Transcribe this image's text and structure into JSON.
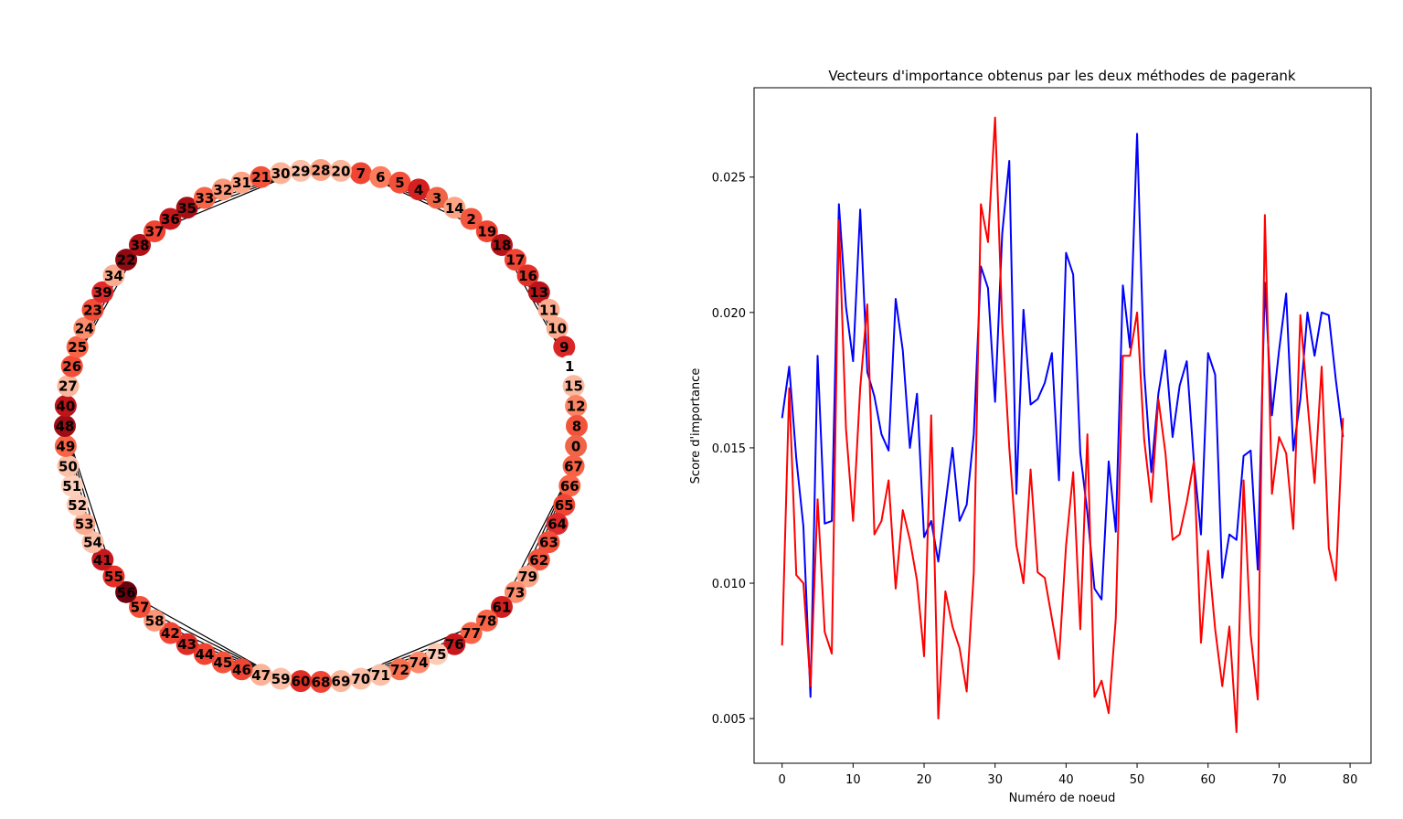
{
  "chart_data": [
    {
      "type": "network",
      "layout": "circular",
      "order": [
        7,
        6,
        5,
        4,
        3,
        14,
        2,
        19,
        18,
        17,
        16,
        13,
        11,
        10,
        9,
        1,
        15,
        12,
        8,
        0,
        67,
        66,
        65,
        64,
        63,
        62,
        79,
        73,
        61,
        78,
        77,
        76,
        75,
        74,
        72,
        71,
        70,
        69,
        68,
        60,
        59,
        47,
        46,
        45,
        44,
        43,
        42,
        58,
        57,
        56,
        55,
        41,
        54,
        53,
        52,
        51,
        50,
        49,
        48,
        40,
        27,
        26,
        25,
        24,
        23,
        39,
        34,
        22,
        38,
        37,
        36,
        35,
        33,
        32,
        31,
        21,
        30,
        29,
        28,
        20
      ],
      "node_colors": {
        "0": "#ef6548",
        "1": "#ffffff",
        "2": "#f3573f",
        "3": "#f06446",
        "4": "#d42020",
        "5": "#f44f39",
        "6": "#fb7d5d",
        "7": "#ef4533",
        "8": "#f4533b",
        "9": "#d92523",
        "10": "#fcad90",
        "11": "#fcad90",
        "12": "#fb8363",
        "13": "#b81419",
        "14": "#fca486",
        "15": "#fcb99f",
        "16": "#e43027",
        "17": "#f14432",
        "18": "#b61319",
        "19": "#f14432",
        "20": "#fcb69b",
        "21": "#f4533b",
        "22": "#900a12",
        "23": "#f34c37",
        "24": "#fc8d6d",
        "25": "#f96346",
        "26": "#f34c37",
        "27": "#fcb69b",
        "28": "#fca082",
        "29": "#fcbfa7",
        "30": "#fcb295",
        "31": "#fca486",
        "32": "#fc9777",
        "33": "#f96346",
        "34": "#fcab8f",
        "35": "#a50f15",
        "36": "#c5171c",
        "37": "#f14432",
        "38": "#b11218",
        "39": "#e0292a",
        "40": "#bd151a",
        "41": "#c8171c",
        "42": "#f14432",
        "43": "#e02c26",
        "44": "#f14432",
        "45": "#f4533b",
        "46": "#ef4533",
        "47": "#fcb295",
        "48": "#9e0d14",
        "49": "#f96346",
        "50": "#fcbfa7",
        "51": "#fdd0bc",
        "52": "#fdcab5",
        "53": "#fcab8f",
        "54": "#fcbfa7",
        "55": "#e43027",
        "56": "#6b010e",
        "57": "#f44f39",
        "58": "#fc9777",
        "59": "#fcbfa7",
        "60": "#e12d26",
        "61": "#d21f20",
        "62": "#f5553d",
        "63": "#f44f39",
        "64": "#e0292a",
        "65": "#f14432",
        "66": "#f96346",
        "67": "#f86144",
        "68": "#f14432",
        "69": "#fcb69b",
        "70": "#fcbfa7",
        "71": "#fcbfa7",
        "72": "#f8704f",
        "73": "#fc8d6d",
        "74": "#fc8a6a",
        "75": "#fdcab5",
        "76": "#c5171c",
        "77": "#f96346",
        "78": "#f96346",
        "79": "#fca486"
      },
      "hubs": [
        7,
        29,
        67,
        59,
        48,
        26,
        1,
        69
      ],
      "edge_color": "#000000"
    },
    {
      "type": "line",
      "title": "Vecteurs d'importance obtenus par les deux méthodes de pagerank",
      "xlabel": "Numéro de noeud",
      "ylabel": "Score d'importance",
      "xlim": [
        -3.95,
        82.95
      ],
      "ylim": [
        0.00335,
        0.0283
      ],
      "xticks": [
        0,
        10,
        20,
        30,
        40,
        50,
        60,
        70,
        80
      ],
      "xtick_labels": [
        "0",
        "10",
        "20",
        "30",
        "40",
        "50",
        "60",
        "70",
        "80"
      ],
      "yticks": [
        0.005,
        0.01,
        0.015,
        0.02,
        0.025
      ],
      "ytick_labels": [
        "0.005",
        "0.010",
        "0.015",
        "0.020",
        "0.025"
      ],
      "grid": false,
      "series": [
        {
          "color": "#0000ff",
          "values": [
            0.0161,
            0.018,
            0.0146,
            0.0121,
            0.0058,
            0.0184,
            0.0122,
            0.0123,
            0.024,
            0.0202,
            0.0182,
            0.0238,
            0.0178,
            0.0169,
            0.0155,
            0.0149,
            0.0205,
            0.0186,
            0.015,
            0.017,
            0.0117,
            0.0123,
            0.0108,
            0.0129,
            0.015,
            0.0123,
            0.0129,
            0.0155,
            0.0217,
            0.0209,
            0.0167,
            0.0229,
            0.0256,
            0.0133,
            0.0201,
            0.0166,
            0.0168,
            0.0174,
            0.0185,
            0.0138,
            0.0222,
            0.0214,
            0.0148,
            0.0126,
            0.0098,
            0.0094,
            0.0145,
            0.0119,
            0.021,
            0.0187,
            0.0266,
            0.0178,
            0.0141,
            0.017,
            0.0186,
            0.0154,
            0.0173,
            0.0182,
            0.0145,
            0.0118,
            0.0185,
            0.0177,
            0.0102,
            0.0118,
            0.0116,
            0.0147,
            0.0149,
            0.0105,
            0.0211,
            0.0162,
            0.0186,
            0.0207,
            0.0149,
            0.0168,
            0.02,
            0.0184,
            0.02,
            0.0199,
            0.0175,
            0.0154
          ]
        },
        {
          "color": "#ff0000",
          "values": [
            0.0077,
            0.0172,
            0.0103,
            0.01,
            0.0062,
            0.0131,
            0.0082,
            0.0074,
            0.0234,
            0.0157,
            0.0123,
            0.0172,
            0.0203,
            0.0118,
            0.0123,
            0.0138,
            0.0098,
            0.0127,
            0.0116,
            0.0101,
            0.0073,
            0.0162,
            0.005,
            0.0097,
            0.0084,
            0.0076,
            0.006,
            0.0104,
            0.024,
            0.0226,
            0.0272,
            0.0196,
            0.015,
            0.0114,
            0.01,
            0.0142,
            0.0104,
            0.0102,
            0.0087,
            0.0072,
            0.0114,
            0.0141,
            0.0083,
            0.0155,
            0.0058,
            0.0064,
            0.0052,
            0.0087,
            0.0184,
            0.0184,
            0.02,
            0.0153,
            0.013,
            0.0168,
            0.0148,
            0.0116,
            0.0118,
            0.013,
            0.0145,
            0.0078,
            0.0112,
            0.0083,
            0.0062,
            0.0084,
            0.0045,
            0.0138,
            0.0081,
            0.0057,
            0.0236,
            0.0133,
            0.0154,
            0.0148,
            0.012,
            0.0199,
            0.0167,
            0.0137,
            0.018,
            0.0113,
            0.0101,
            0.0161
          ]
        }
      ]
    }
  ]
}
